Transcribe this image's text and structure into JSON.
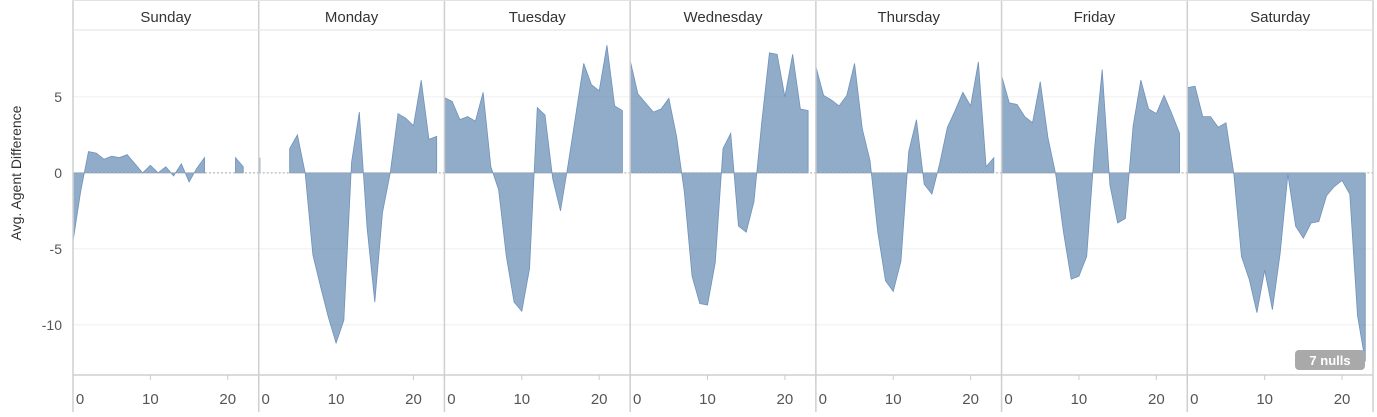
{
  "chart_data": {
    "type": "area",
    "title": "",
    "ylabel": "Avg. Agent Difference",
    "xlabel": "",
    "ylim": [
      -13.3,
      9.4
    ],
    "xlim": [
      0,
      24
    ],
    "yticks": [
      5,
      0,
      -5,
      -10
    ],
    "xticks": [
      0,
      10,
      20
    ],
    "grid": true,
    "fill_color": "#4e79a7",
    "null_indicator": "7 nulls",
    "x": [
      0,
      1,
      2,
      3,
      4,
      5,
      6,
      7,
      8,
      9,
      10,
      11,
      12,
      13,
      14,
      15,
      16,
      17,
      18,
      19,
      20,
      21,
      22,
      23
    ],
    "series": [
      {
        "name": "Sunday",
        "values": [
          -4.5,
          -1.2,
          1.4,
          1.3,
          0.9,
          1.1,
          1.0,
          1.2,
          0.6,
          0.0,
          0.5,
          0.0,
          0.4,
          -0.2,
          0.6,
          -0.6,
          0.3,
          1.0,
          null,
          null,
          null,
          1.0,
          0.4,
          null
        ]
      },
      {
        "name": "Monday",
        "values": [
          1.0,
          null,
          null,
          null,
          1.6,
          2.5,
          0.0,
          -5.4,
          -7.5,
          -9.5,
          -11.2,
          -9.7,
          0.7,
          4.0,
          -3.6,
          -8.5,
          -2.6,
          0.0,
          3.9,
          3.6,
          3.1,
          6.1,
          2.2,
          2.4
        ]
      },
      {
        "name": "Tuesday",
        "values": [
          4.95,
          4.7,
          3.5,
          3.7,
          3.4,
          5.3,
          0.4,
          -1.1,
          -5.5,
          -8.5,
          -9.1,
          -6.3,
          4.3,
          3.8,
          -0.4,
          -2.5,
          0.6,
          3.9,
          7.2,
          5.8,
          5.4,
          8.4,
          4.4,
          4.1
        ]
      },
      {
        "name": "Wednesday",
        "values": [
          7.4,
          5.2,
          4.6,
          4.0,
          4.2,
          4.9,
          2.4,
          -1.25,
          -6.8,
          -8.6,
          -8.7,
          -5.9,
          1.6,
          2.6,
          -3.5,
          -3.9,
          -1.9,
          3.3,
          7.9,
          7.8,
          5.0,
          7.8,
          4.2,
          4.1
        ]
      },
      {
        "name": "Thursday",
        "values": [
          7.0,
          5.1,
          4.8,
          4.4,
          5.1,
          7.2,
          2.9,
          0.8,
          -3.9,
          -7.1,
          -7.8,
          -5.8,
          1.4,
          3.5,
          -0.75,
          -1.4,
          0.6,
          3.0,
          4.1,
          5.3,
          4.4,
          7.3,
          0.4,
          1.0
        ]
      },
      {
        "name": "Friday",
        "values": [
          6.4,
          4.6,
          4.5,
          3.7,
          3.3,
          6.0,
          2.3,
          -0.1,
          -3.9,
          -7.0,
          -6.8,
          -5.5,
          1.5,
          6.8,
          -0.8,
          -3.3,
          -3.0,
          3.1,
          6.1,
          4.2,
          3.9,
          5.1,
          3.9,
          2.6
        ]
      },
      {
        "name": "Saturday",
        "values": [
          5.6,
          5.7,
          3.7,
          3.7,
          3.0,
          3.3,
          0.0,
          -5.5,
          -7.0,
          -9.2,
          -6.4,
          -9.0,
          -5.3,
          -0.1,
          -3.5,
          -4.3,
          -3.3,
          -3.2,
          -1.5,
          -0.9,
          -0.5,
          -1.4,
          -9.4,
          -12.4
        ]
      }
    ]
  }
}
